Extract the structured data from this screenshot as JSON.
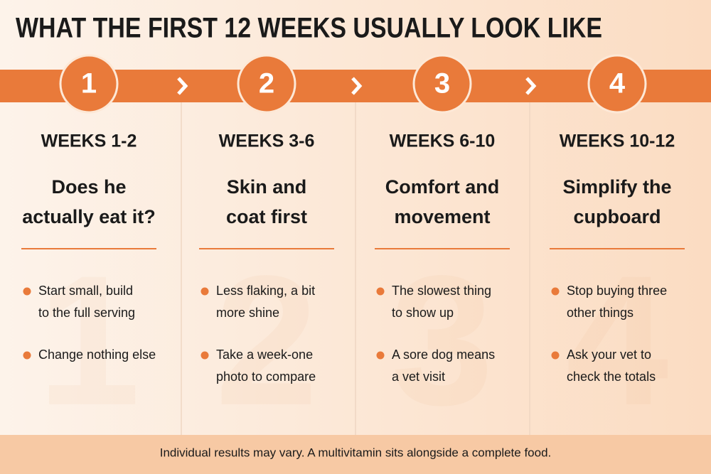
{
  "title": "WHAT THE FIRST 12 WEEKS USUALLY LOOK LIKE",
  "steps": [
    {
      "number": "1",
      "weeks": "WEEKS 1-2",
      "heading": [
        "Does he",
        "actually eat it?"
      ],
      "bullets": [
        [
          "Start small, build",
          "to the full serving"
        ],
        [
          "Change nothing else"
        ]
      ]
    },
    {
      "number": "2",
      "weeks": "WEEKS 3-6",
      "heading": [
        "Skin and",
        "coat first"
      ],
      "bullets": [
        [
          "Less flaking, a bit",
          "more shine"
        ],
        [
          "Take a week-one",
          "photo to compare"
        ]
      ]
    },
    {
      "number": "3",
      "weeks": "WEEKS 6-10",
      "heading": [
        "Comfort and",
        "movement"
      ],
      "bullets": [
        [
          "The slowest thing",
          "to show up"
        ],
        [
          "A sore dog means",
          "a vet visit"
        ]
      ]
    },
    {
      "number": "4",
      "weeks": "WEEKS 10-12",
      "heading": [
        "Simplify the",
        "cupboard"
      ],
      "bullets": [
        [
          "Stop buying three",
          "other things"
        ],
        [
          "Ask your vet to",
          "check the totals"
        ]
      ]
    }
  ],
  "footer": "Individual results may vary. A multivitamin sits alongside a complete food."
}
